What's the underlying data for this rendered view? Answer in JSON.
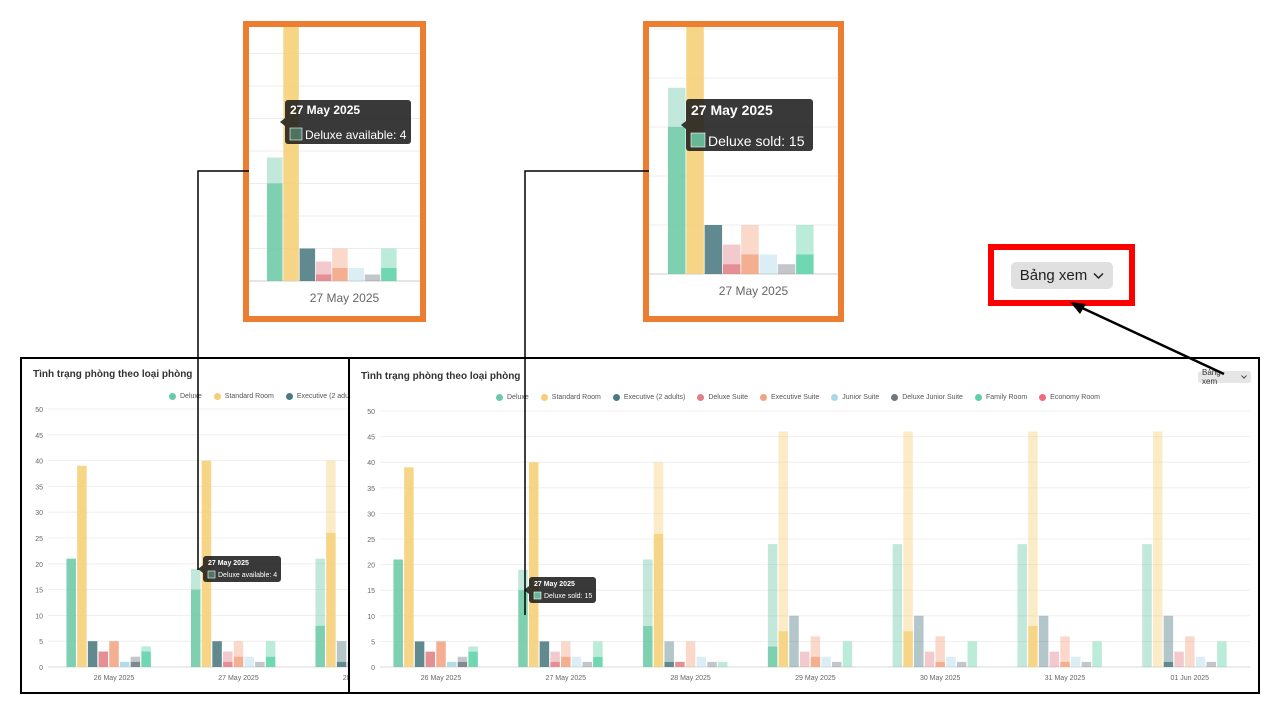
{
  "chart_data": {
    "type": "bar",
    "title": "Tình trạng phòng theo loại phòng",
    "ylim": [
      0,
      50
    ],
    "yticks": [
      0,
      5,
      10,
      15,
      20,
      25,
      30,
      35,
      40,
      45,
      50
    ],
    "categories": [
      "26 May 2025",
      "27 May 2025",
      "28 May 2025",
      "29 May 2025",
      "30 May 2025",
      "31 May 2025",
      "01 Jun 2025"
    ],
    "stacked_segments": [
      "sold",
      "available"
    ],
    "legend_position": "top-center",
    "grid": true,
    "series": [
      {
        "name": "Deluxe",
        "color": "#6cc9a6",
        "sold": [
          21,
          15,
          8,
          4,
          0,
          0,
          0
        ],
        "available": [
          0,
          4,
          13,
          20,
          24,
          24,
          24
        ]
      },
      {
        "name": "Standard Room",
        "color": "#f5cf76",
        "sold": [
          39,
          40,
          26,
          7,
          7,
          8,
          0
        ],
        "available": [
          0,
          0,
          14,
          39,
          39,
          38,
          46
        ]
      },
      {
        "name": "Executive (2 adults)",
        "color": "#4a7a80",
        "sold": [
          5,
          5,
          1,
          0,
          0,
          0,
          1
        ],
        "available": [
          0,
          0,
          4,
          10,
          10,
          10,
          9
        ]
      },
      {
        "name": "Deluxe Suite",
        "color": "#e07f85",
        "sold": [
          3,
          1,
          1,
          0,
          0,
          0,
          0
        ],
        "available": [
          0,
          2,
          0,
          3,
          3,
          3,
          3
        ]
      },
      {
        "name": "Executive Suite",
        "color": "#f2a482",
        "sold": [
          5,
          2,
          0,
          2,
          1,
          1,
          0
        ],
        "available": [
          0,
          3,
          5,
          4,
          5,
          5,
          6
        ]
      },
      {
        "name": "Junior Suite",
        "color": "#a9d7e8",
        "sold": [
          1,
          0,
          0,
          0,
          0,
          0,
          0
        ],
        "available": [
          0,
          2,
          2,
          2,
          2,
          2,
          2
        ]
      },
      {
        "name": "Deluxe Junior Suite",
        "color": "#707780",
        "sold": [
          1,
          0,
          0,
          0,
          0,
          0,
          0
        ],
        "available": [
          1,
          1,
          1,
          1,
          1,
          1,
          1
        ]
      },
      {
        "name": "Family Room",
        "color": "#5cd1a8",
        "sold": [
          3,
          2,
          0,
          0,
          0,
          0,
          0
        ],
        "available": [
          1,
          3,
          1,
          5,
          5,
          5,
          5
        ]
      },
      {
        "name": "Economy Room",
        "color": "#f06b80",
        "sold": [
          0,
          0,
          0,
          0,
          0,
          0,
          0
        ],
        "available": [
          0,
          0,
          0,
          0,
          0,
          0,
          0
        ]
      }
    ]
  },
  "view_button": {
    "label": "Bảng xem"
  },
  "tooltips": {
    "available": {
      "title": "27 May 2025",
      "series": "Deluxe",
      "label": "available: 4"
    },
    "sold": {
      "title": "27 May 2025",
      "series": "Deluxe",
      "label": "sold: 15"
    }
  },
  "zoom_axis_label": "27 May 2025"
}
